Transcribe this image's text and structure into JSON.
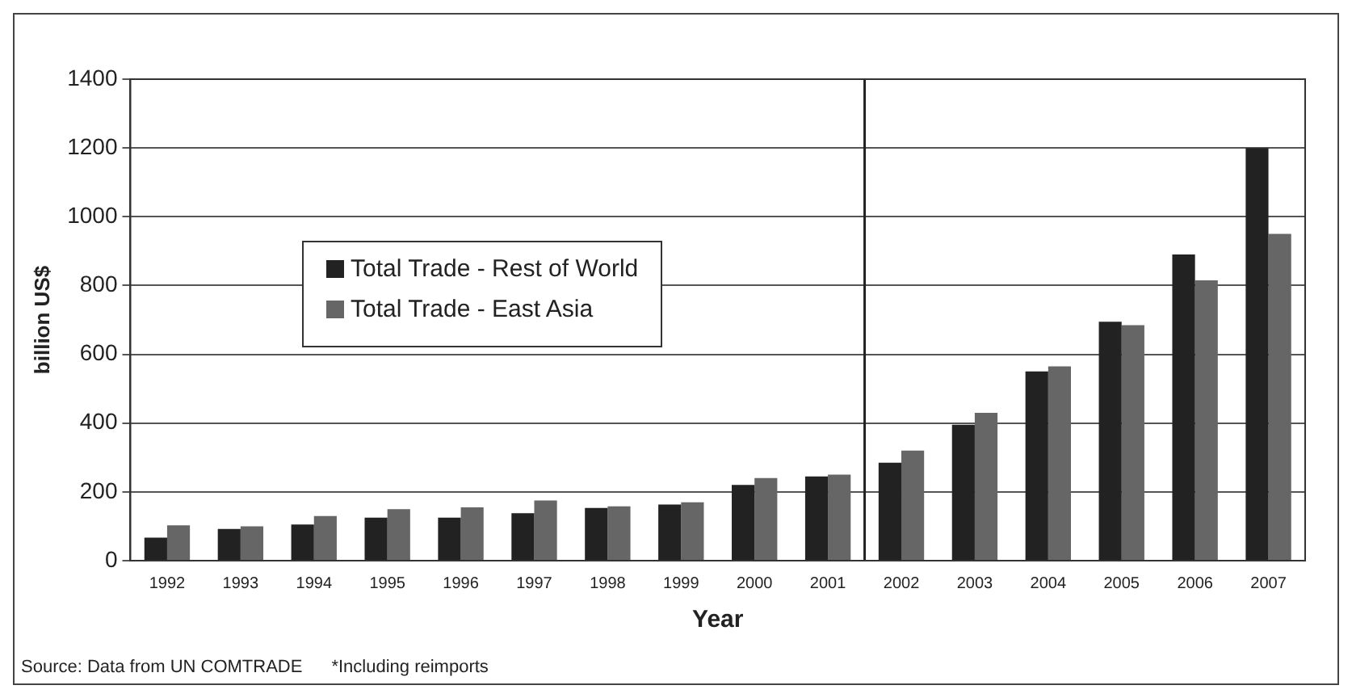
{
  "chart_data": {
    "type": "bar",
    "xlabel": "Year",
    "ylabel": "billion US$",
    "categories": [
      "1992",
      "1993",
      "1994",
      "1995",
      "1996",
      "1997",
      "1998",
      "1999",
      "2000",
      "2001",
      "2002",
      "2003",
      "2004",
      "2005",
      "2006",
      "2007"
    ],
    "series": [
      {
        "name": "Total Trade - Rest of World",
        "color": "#222222",
        "values": [
          67,
          92,
          105,
          125,
          125,
          138,
          153,
          163,
          220,
          245,
          285,
          395,
          550,
          695,
          890,
          1200
        ]
      },
      {
        "name": "Total Trade - East Asia",
        "color": "#666666",
        "values": [
          103,
          100,
          130,
          150,
          155,
          175,
          158,
          170,
          240,
          250,
          320,
          430,
          565,
          685,
          815,
          950
        ]
      }
    ],
    "ylim": [
      0,
      1400
    ],
    "yticks": [
      0,
      200,
      400,
      600,
      800,
      1000,
      1200,
      1400
    ],
    "grid": "y",
    "legend": "top left",
    "ref_lines": [
      {
        "axis": "x",
        "value": "2001",
        "color": "#222222"
      }
    ],
    "annotations": [
      "Source: Data from UN COMTRADE",
      "*Including reimports"
    ]
  }
}
